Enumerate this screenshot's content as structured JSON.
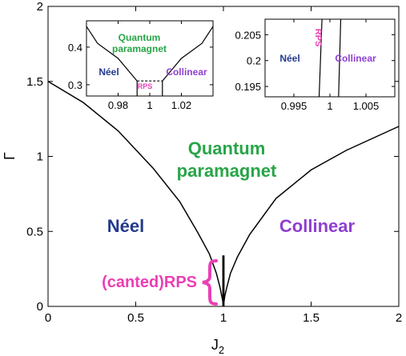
{
  "colors": {
    "neel": "#233a8c",
    "collinear": "#8e3fd1",
    "quantum": "#28a548",
    "rps": "#ea3fb5",
    "line": "#000000"
  },
  "chart_data": [
    {
      "type": "line",
      "role": "main",
      "xlabel_main": "J",
      "xlabel_sub": "2",
      "ylabel": "Γ",
      "xlim": [
        0,
        2
      ],
      "ylim": [
        0,
        2
      ],
      "x_ticks": [
        "0",
        "0.5",
        "1",
        "1.5",
        "2"
      ],
      "x_tick_values": [
        0,
        0.5,
        1,
        1.5,
        2
      ],
      "y_ticks": [
        "0",
        "0.5",
        "1",
        "1.5",
        "2"
      ],
      "y_tick_values": [
        0,
        0.5,
        1,
        1.5,
        2
      ],
      "grid": false,
      "series": [
        {
          "x": [
            0,
            0.2,
            0.4,
            0.6,
            0.75,
            0.85,
            0.92,
            0.96,
            0.98,
            0.992,
            0.997
          ],
          "y": [
            1.5,
            1.36,
            1.17,
            0.92,
            0.7,
            0.5,
            0.35,
            0.22,
            0.13,
            0.06,
            0.03
          ]
        },
        {
          "x": [
            1.003,
            1.008,
            1.02,
            1.04,
            1.08,
            1.15,
            1.3,
            1.5,
            1.7,
            2.0
          ],
          "y": [
            0.03,
            0.07,
            0.13,
            0.22,
            0.33,
            0.48,
            0.72,
            0.91,
            1.04,
            1.2
          ]
        },
        {
          "x": [
            0.997,
            0.997
          ],
          "y": [
            0,
            0.34
          ]
        },
        {
          "x": [
            1.003,
            1.003
          ],
          "y": [
            0,
            0.34
          ]
        }
      ],
      "labels": {
        "quantum_line1": "Quantum",
        "quantum_line2": "paramagnet",
        "neel": "Néel",
        "collinear": "Collinear",
        "rps": "(canted)RPS"
      }
    },
    {
      "type": "line",
      "role": "inset-left",
      "xlim": [
        0.96,
        1.04
      ],
      "ylim": [
        0.27,
        0.47
      ],
      "x_ticks": [
        "0.98",
        "1",
        "1.02"
      ],
      "x_tick_values": [
        0.98,
        1,
        1.02
      ],
      "y_ticks": [
        "0.3",
        "0.4"
      ],
      "y_tick_values": [
        0.3,
        0.4
      ],
      "series": [
        {
          "x": [
            0.96,
            0.967,
            0.98,
            0.992
          ],
          "y": [
            0.455,
            0.41,
            0.37,
            0.31
          ]
        },
        {
          "x": [
            1.008,
            1.02,
            1.033,
            1.04
          ],
          "y": [
            0.31,
            0.37,
            0.41,
            0.455
          ]
        },
        {
          "x": [
            0.992,
            1.008
          ],
          "y": [
            0.31,
            0.31
          ],
          "dashed": true
        },
        {
          "x": [
            0.992,
            0.992
          ],
          "y": [
            0.27,
            0.31
          ]
        },
        {
          "x": [
            1.008,
            1.008
          ],
          "y": [
            0.27,
            0.31
          ]
        }
      ],
      "labels": {
        "quantum_line1": "Quantum",
        "quantum_line2": "paramagnet",
        "neel": "Néel",
        "collinear": "Collinear",
        "rps": "RPS"
      }
    },
    {
      "type": "line",
      "role": "inset-right",
      "xlim": [
        0.991,
        1.009
      ],
      "ylim": [
        0.193,
        0.208
      ],
      "x_ticks": [
        "0.995",
        "1",
        "1.005"
      ],
      "x_tick_values": [
        0.995,
        1,
        1.005
      ],
      "y_ticks": [
        "0.195",
        "0.2",
        "0.205"
      ],
      "y_tick_values": [
        0.195,
        0.2,
        0.205
      ],
      "series": [
        {
          "x": [
            0.9989,
            0.9985
          ],
          "y": [
            0.208,
            0.193
          ]
        },
        {
          "x": [
            1.0015,
            1.0012
          ],
          "y": [
            0.208,
            0.193
          ]
        }
      ],
      "labels": {
        "neel": "Néel",
        "collinear": "Collinear",
        "rps": "RPS"
      }
    }
  ]
}
